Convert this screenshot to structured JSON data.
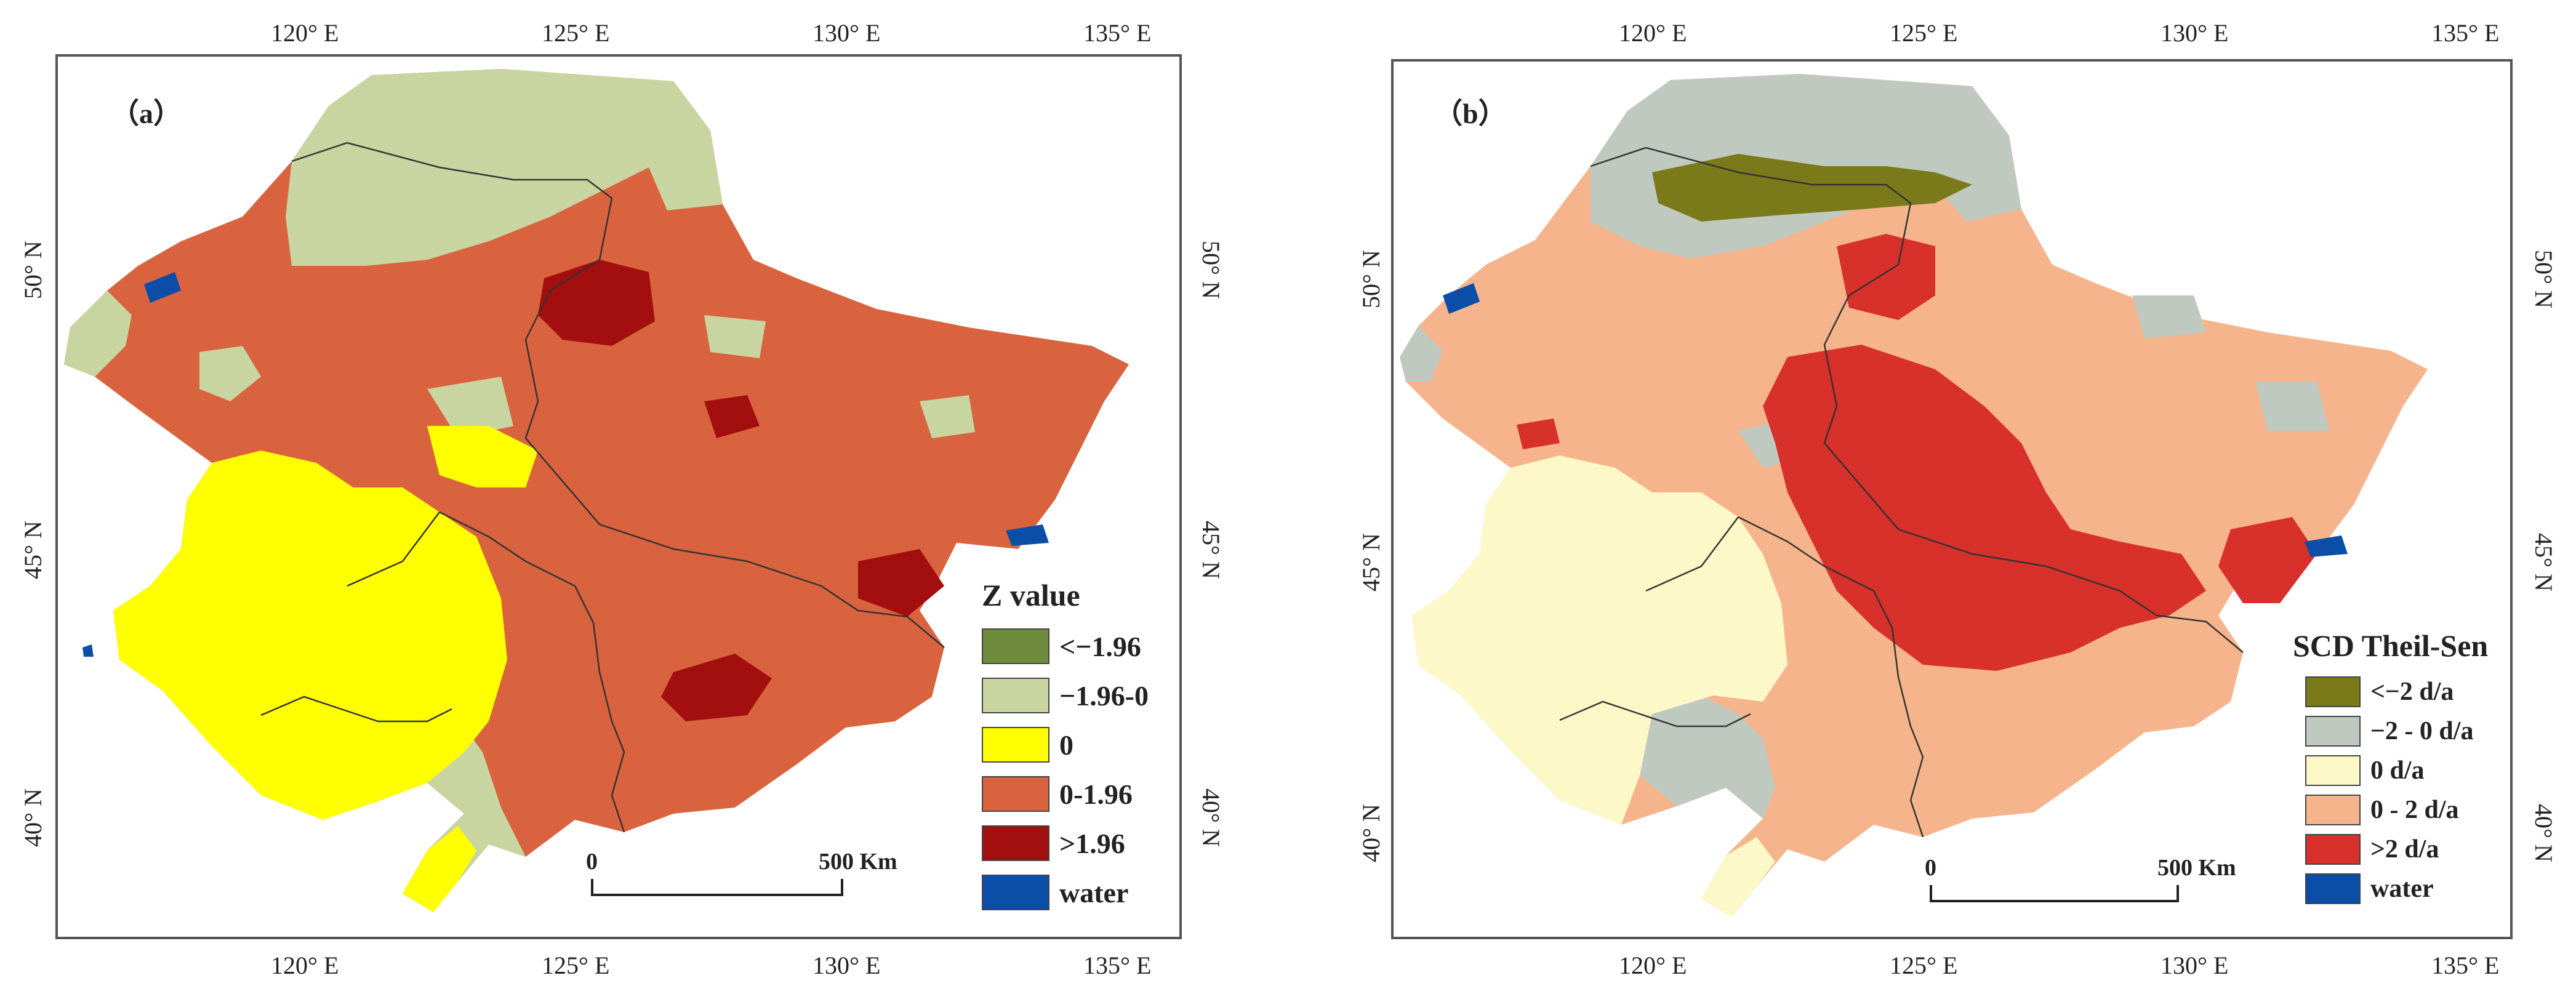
{
  "panels": [
    {
      "label": "（a）",
      "top_lon_labels": [
        "120° E",
        "125° E",
        "130° E",
        "135° E"
      ],
      "bottom_lon_labels": [
        "120° E",
        "125° E",
        "130° E",
        "135° E"
      ],
      "lat_labels": [
        "50° N",
        "45° N",
        "40° N"
      ],
      "legend": {
        "title": "Z value",
        "items": [
          {
            "label": "<−1.96",
            "color": "#6e8b3d"
          },
          {
            "label": "−1.96-0",
            "color": "#c8d5a0"
          },
          {
            "label": "0",
            "color": "#ffff00"
          },
          {
            "label": "0-1.96",
            "color": "#d9633e"
          },
          {
            "label": ">1.96",
            "color": "#a30f0f"
          },
          {
            "label": "water",
            "color": "#0a4ea8"
          }
        ]
      },
      "scalebar": {
        "start": "0",
        "end": "500 Km"
      }
    },
    {
      "label": "（b）",
      "top_lon_labels": [
        "120° E",
        "125° E",
        "130° E",
        "135° E"
      ],
      "bottom_lon_labels": [
        "120° E",
        "125° E",
        "130° E",
        "135° E"
      ],
      "lat_labels": [
        "50° N",
        "45° N",
        "40° N"
      ],
      "legend": {
        "title": "SCD Theil-Sen",
        "items": [
          {
            "label": "<−2 d/a",
            "color": "#7a7a1a"
          },
          {
            "label": "−2 - 0 d/a",
            "color": "#c0c9c0"
          },
          {
            "label": "0 d/a",
            "color": "#fdf8c8"
          },
          {
            "label": "0 - 2 d/a",
            "color": "#f6b48c"
          },
          {
            "label": ">2 d/a",
            "color": "#d8302b"
          },
          {
            "label": "water",
            "color": "#0a4ea8"
          }
        ]
      },
      "scalebar": {
        "start": "0",
        "end": "500 Km"
      }
    }
  ]
}
